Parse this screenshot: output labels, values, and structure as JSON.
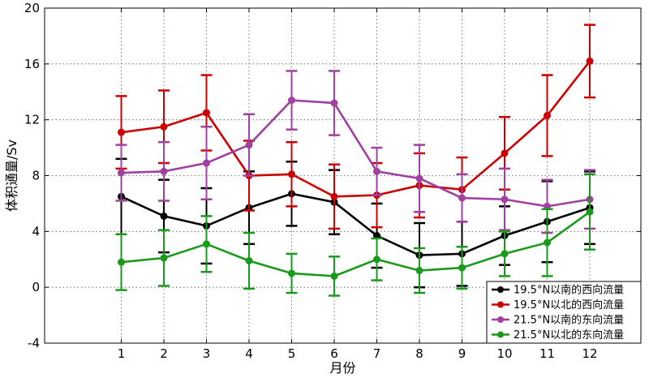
{
  "chart_data": {
    "type": "line",
    "xlabel": "月份",
    "ylabel": "体积通量/Sv",
    "x": [
      1,
      2,
      3,
      4,
      5,
      6,
      7,
      8,
      9,
      10,
      11,
      12
    ],
    "xlim": [
      -0.8,
      13.2
    ],
    "ylim": [
      -4,
      20
    ],
    "yticks": [
      -4,
      0,
      4,
      8,
      12,
      16,
      20
    ],
    "grid": true,
    "legend_position": "bottom-right",
    "series": [
      {
        "name": "19.5°N以南的西向流量",
        "color": "#000000",
        "values": [
          6.5,
          5.1,
          4.4,
          5.7,
          6.7,
          6.1,
          3.7,
          2.3,
          2.4,
          3.7,
          4.7,
          5.7
        ],
        "errors": [
          2.7,
          2.6,
          2.7,
          2.6,
          2.3,
          2.3,
          2.3,
          2.3,
          2.3,
          2.1,
          2.9,
          2.6
        ]
      },
      {
        "name": "19.5°N以北的西向流量",
        "color": "#cc0000",
        "values": [
          11.1,
          11.5,
          12.5,
          8.0,
          8.1,
          6.5,
          6.6,
          7.3,
          7.0,
          9.6,
          12.3,
          16.2
        ],
        "errors": [
          2.6,
          2.6,
          2.7,
          2.5,
          2.3,
          2.3,
          2.3,
          2.3,
          2.3,
          2.6,
          2.9,
          2.6
        ]
      },
      {
        "name": "21.5°N以南的东向流量",
        "color": "#a040a0",
        "values": [
          8.2,
          8.3,
          8.9,
          10.2,
          13.4,
          13.2,
          8.3,
          7.8,
          6.4,
          6.3,
          5.8,
          6.3
        ],
        "errors": [
          2.0,
          2.1,
          2.6,
          2.2,
          2.1,
          2.3,
          1.7,
          2.4,
          1.7,
          2.2,
          1.9,
          2.1
        ]
      },
      {
        "name": "21.5°N以北的东向流量",
        "color": "#1a9a1a",
        "values": [
          1.8,
          2.1,
          3.1,
          1.9,
          1.0,
          0.8,
          2.0,
          1.2,
          1.4,
          2.4,
          3.2,
          5.4
        ],
        "errors": [
          2.0,
          2.0,
          2.0,
          2.0,
          1.4,
          1.4,
          1.5,
          1.6,
          1.5,
          1.6,
          2.4,
          2.7
        ]
      }
    ]
  }
}
